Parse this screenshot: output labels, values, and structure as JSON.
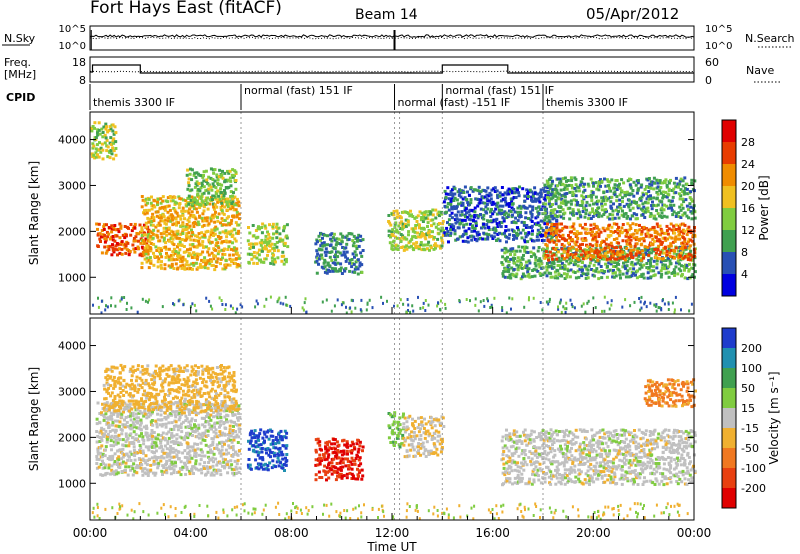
{
  "header": {
    "station": "Fort Hays East (fitACF)",
    "beam": "Beam 14",
    "date": "05/Apr/2012"
  },
  "left_labels": {
    "nsky": "N.Sky",
    "freq_line1": "Freq.",
    "freq_line2": "[MHz]",
    "cpid": "CPID"
  },
  "right_labels": {
    "nsearch": "N.Search",
    "nave": "Nave"
  },
  "noise_panel": {
    "left_ticks": [
      "10^5",
      "10^0"
    ],
    "right_ticks": [
      "10^5",
      "10^0"
    ]
  },
  "freq_panel": {
    "left_ticks": [
      "18",
      "8"
    ],
    "right_ticks": [
      "60",
      "0"
    ]
  },
  "cpid_segments": [
    {
      "label": "themis 3300 IF",
      "start": 0.0,
      "end": 6.0
    },
    {
      "label": "normal (fast) 151 IF",
      "start": 6.0,
      "end": 12.1
    },
    {
      "label": "normal (fast) -151 IF",
      "start": 12.1,
      "end": 14.0
    },
    {
      "label": "normal (fast) 151 IF",
      "start": 14.0,
      "end": 18.0
    },
    {
      "label": "themis 3300 IF",
      "start": 18.0,
      "end": 24.0
    }
  ],
  "x_axis": {
    "title": "Time UT",
    "ticks": [
      "00:00",
      "04:00",
      "08:00",
      "12:00",
      "16:00",
      "20:00",
      "00:00"
    ]
  },
  "power_colorbar": {
    "label": "Power [dB]",
    "ticks": [
      "4",
      "8",
      "12",
      "16",
      "20",
      "24",
      "28"
    ],
    "colors": [
      "#0000e0",
      "#2850b4",
      "#40a050",
      "#80cc40",
      "#f0c020",
      "#f08c00",
      "#e83c00",
      "#e00000"
    ]
  },
  "velocity_colorbar": {
    "label": "Velocity [m s⁻¹]",
    "ticks": [
      "200",
      "100",
      "50",
      "15",
      "-15",
      "-50",
      "-100",
      "-200"
    ],
    "colors": [
      "#1e3ccc",
      "#2090b0",
      "#40a050",
      "#80cc40",
      "#c0c0c0",
      "#f0b030",
      "#f07820",
      "#e84010",
      "#e00000"
    ]
  },
  "chart_data": [
    {
      "type": "heatmap",
      "title": "Power",
      "xlabel": "Time UT",
      "ylabel": "Slant Range [km]",
      "xlim": [
        0,
        24
      ],
      "ylim": [
        200,
        4600
      ],
      "yticks": [
        1000,
        2000,
        3000,
        4000
      ],
      "colorbar_label": "Power [dB]",
      "colorbar_range": [
        0,
        30
      ],
      "echo_regions": [
        {
          "t0": 0.2,
          "t1": 2.3,
          "r0": 1500,
          "r1": 2200,
          "value": 24
        },
        {
          "t0": 0.0,
          "t1": 1.0,
          "r0": 3600,
          "r1": 4400,
          "value": 14
        },
        {
          "t0": 2.0,
          "t1": 5.9,
          "r0": 1200,
          "r1": 2800,
          "value": 18
        },
        {
          "t0": 3.8,
          "t1": 5.8,
          "r0": 2600,
          "r1": 3400,
          "value": 12
        },
        {
          "t0": 6.2,
          "t1": 7.8,
          "r0": 1300,
          "r1": 2200,
          "value": 14
        },
        {
          "t0": 8.9,
          "t1": 10.8,
          "r0": 1100,
          "r1": 2000,
          "value": 8
        },
        {
          "t0": 11.8,
          "t1": 14.0,
          "r0": 1600,
          "r1": 2500,
          "value": 14
        },
        {
          "t0": 14.0,
          "t1": 18.5,
          "r0": 1800,
          "r1": 3000,
          "value": 6
        },
        {
          "t0": 16.3,
          "t1": 24.0,
          "r0": 1000,
          "r1": 1700,
          "value": 10
        },
        {
          "t0": 18.0,
          "t1": 24.0,
          "r0": 1400,
          "r1": 2200,
          "value": 22
        },
        {
          "t0": 18.0,
          "t1": 24.0,
          "r0": 2300,
          "r1": 3200,
          "value": 10
        }
      ]
    },
    {
      "type": "heatmap",
      "title": "Velocity",
      "xlabel": "Time UT",
      "ylabel": "Slant Range [km]",
      "xlim": [
        0,
        24
      ],
      "ylim": [
        200,
        4600
      ],
      "yticks": [
        1000,
        2000,
        3000,
        4000
      ],
      "colorbar_label": "Velocity [m s⁻¹]",
      "colorbar_range": [
        -250,
        250
      ],
      "echo_regions": [
        {
          "t0": 0.2,
          "t1": 5.9,
          "r0": 1200,
          "r1": 2800,
          "value": 0
        },
        {
          "t0": 0.5,
          "t1": 5.8,
          "r0": 2600,
          "r1": 3600,
          "value": -30
        },
        {
          "t0": 6.2,
          "t1": 7.8,
          "r0": 1300,
          "r1": 2200,
          "value": 210
        },
        {
          "t0": 8.9,
          "t1": 10.8,
          "r0": 1100,
          "r1": 2000,
          "value": -200
        },
        {
          "t0": 11.8,
          "t1": 12.4,
          "r0": 1800,
          "r1": 2600,
          "value": 40
        },
        {
          "t0": 12.4,
          "t1": 14.0,
          "r0": 1600,
          "r1": 2500,
          "value": -10
        },
        {
          "t0": 16.3,
          "t1": 24.0,
          "r0": 1000,
          "r1": 2200,
          "value": 0
        },
        {
          "t0": 22.0,
          "t1": 24.0,
          "r0": 2700,
          "r1": 3300,
          "value": -60
        }
      ]
    }
  ]
}
